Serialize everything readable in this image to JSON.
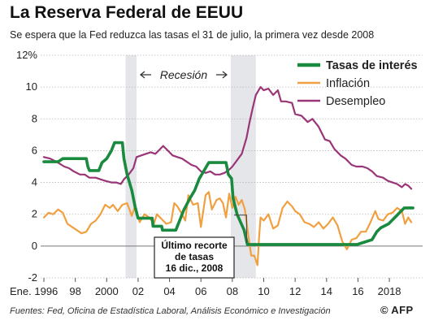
{
  "header": {
    "title": "La Reserva Federal de EEUU",
    "subtitle": "Se espera que la Fed reduzca las tasas el 31 de julio, la primera vez desde 2008"
  },
  "footer": {
    "source": "Fuentes: Fed, Oficina de Estadística Laboral, Análisis Económico e Investigación",
    "copyright": "©",
    "brand": "AFP"
  },
  "colors": {
    "fed_rate": "#1a8a3e",
    "inflation": "#f0a040",
    "unemployment": "#9a3577",
    "recession": "#e4e6ea"
  },
  "chart_data": {
    "type": "line",
    "title": "La Reserva Federal de EEUU",
    "subtitle": "Se espera que la Fed reduzca las tasas el 31 de julio, la primera vez desde 2008",
    "xlim": [
      1996,
      2019.6
    ],
    "ylim": [
      -2,
      12
    ],
    "x_ticks": [
      {
        "x": 1996,
        "label": "Ene. 1996"
      },
      {
        "x": 1998,
        "label": "98"
      },
      {
        "x": 2000,
        "label": "2000"
      },
      {
        "x": 2002,
        "label": "02"
      },
      {
        "x": 2004,
        "label": "04"
      },
      {
        "x": 2006,
        "label": "06"
      },
      {
        "x": 2008,
        "label": "08"
      },
      {
        "x": 2010,
        "label": "10"
      },
      {
        "x": 2012,
        "label": "12"
      },
      {
        "x": 2014,
        "label": "14"
      },
      {
        "x": 2016,
        "label": "16"
      },
      {
        "x": 2018,
        "label": "2018"
      }
    ],
    "y_ticks": [
      {
        "y": 12,
        "label": "12%"
      },
      {
        "y": 10,
        "label": "10"
      },
      {
        "y": 8,
        "label": "8"
      },
      {
        "y": 6,
        "label": "6"
      },
      {
        "y": 4,
        "label": "4"
      },
      {
        "y": 2,
        "label": "2"
      },
      {
        "y": 0,
        "label": "0"
      },
      {
        "y": -2,
        "label": "-2"
      }
    ],
    "recessions": [
      {
        "start": 2001.2,
        "end": 2001.9
      },
      {
        "start": 2007.9,
        "end": 2009.5
      }
    ],
    "recession_label": "Recesión",
    "annotation": {
      "text": [
        "Último recorte",
        "de tasas",
        "16 dic., 2008"
      ],
      "x": 2008.96,
      "y": 0.1
    },
    "legend": {
      "position": "top-right"
    },
    "series": [
      {
        "name": "Tasas de interés",
        "key": "fed_rate",
        "points": [
          [
            1996,
            5.3
          ],
          [
            1996.9,
            5.3
          ],
          [
            1997.2,
            5.5
          ],
          [
            1998.7,
            5.5
          ],
          [
            1998.8,
            5.0
          ],
          [
            1998.9,
            4.75
          ],
          [
            1999.5,
            4.75
          ],
          [
            1999.7,
            5.25
          ],
          [
            2000.0,
            5.5
          ],
          [
            2000.3,
            6.0
          ],
          [
            2000.5,
            6.5
          ],
          [
            2001.0,
            6.5
          ],
          [
            2001.1,
            5.5
          ],
          [
            2001.3,
            4.5
          ],
          [
            2001.6,
            3.5
          ],
          [
            2001.8,
            2.5
          ],
          [
            2002.0,
            1.75
          ],
          [
            2002.9,
            1.75
          ],
          [
            2002.95,
            1.25
          ],
          [
            2003.5,
            1.25
          ],
          [
            2003.55,
            1.0
          ],
          [
            2004.4,
            1.0
          ],
          [
            2004.6,
            1.5
          ],
          [
            2004.9,
            2.25
          ],
          [
            2005.3,
            3.0
          ],
          [
            2005.6,
            3.5
          ],
          [
            2005.9,
            4.25
          ],
          [
            2006.2,
            4.75
          ],
          [
            2006.5,
            5.25
          ],
          [
            2007.6,
            5.25
          ],
          [
            2007.75,
            4.5
          ],
          [
            2007.95,
            4.25
          ],
          [
            2008.05,
            3.0
          ],
          [
            2008.3,
            2.0
          ],
          [
            2008.75,
            1.0
          ],
          [
            2008.96,
            0.1
          ],
          [
            2015.95,
            0.1
          ],
          [
            2016.9,
            0.4
          ],
          [
            2017.2,
            0.9
          ],
          [
            2017.45,
            1.15
          ],
          [
            2017.95,
            1.4
          ],
          [
            2018.2,
            1.65
          ],
          [
            2018.45,
            1.9
          ],
          [
            2018.7,
            2.15
          ],
          [
            2018.95,
            2.4
          ],
          [
            2019.5,
            2.4
          ]
        ]
      },
      {
        "name": "Inflación",
        "key": "inflation",
        "points": [
          [
            1996,
            1.8
          ],
          [
            1996.3,
            2.1
          ],
          [
            1996.6,
            2.0
          ],
          [
            1996.9,
            2.3
          ],
          [
            1997.2,
            2.1
          ],
          [
            1997.5,
            1.4
          ],
          [
            1997.8,
            1.2
          ],
          [
            1998.1,
            1.0
          ],
          [
            1998.4,
            0.8
          ],
          [
            1998.7,
            0.9
          ],
          [
            1999.0,
            1.4
          ],
          [
            1999.3,
            1.6
          ],
          [
            1999.6,
            2.0
          ],
          [
            1999.9,
            2.6
          ],
          [
            2000.2,
            2.4
          ],
          [
            2000.4,
            2.6
          ],
          [
            2000.7,
            2.2
          ],
          [
            2001.0,
            2.6
          ],
          [
            2001.3,
            2.7
          ],
          [
            2001.6,
            1.9
          ],
          [
            2001.8,
            2.5
          ],
          [
            2002.1,
            1.5
          ],
          [
            2002.4,
            2.0
          ],
          [
            2002.7,
            1.8
          ],
          [
            2003.0,
            1.4
          ],
          [
            2003.2,
            2.0
          ],
          [
            2003.5,
            1.7
          ],
          [
            2003.8,
            1.4
          ],
          [
            2004.1,
            1.5
          ],
          [
            2004.3,
            2.7
          ],
          [
            2004.5,
            2.5
          ],
          [
            2004.8,
            2.0
          ],
          [
            2005.0,
            1.6
          ],
          [
            2005.2,
            3.2
          ],
          [
            2005.5,
            2.6
          ],
          [
            2005.8,
            2.7
          ],
          [
            2006.0,
            1.2
          ],
          [
            2006.3,
            3.2
          ],
          [
            2006.5,
            3.4
          ],
          [
            2006.7,
            2.3
          ],
          [
            2007.0,
            2.9
          ],
          [
            2007.2,
            3.0
          ],
          [
            2007.4,
            2.7
          ],
          [
            2007.6,
            1.8
          ],
          [
            2007.8,
            3.3
          ],
          [
            2008.0,
            2.4
          ],
          [
            2008.2,
            3.1
          ],
          [
            2008.4,
            2.6
          ],
          [
            2008.6,
            2.9
          ],
          [
            2008.8,
            2.3
          ],
          [
            2009.0,
            0.8
          ],
          [
            2009.2,
            -0.6
          ],
          [
            2009.4,
            -0.6
          ],
          [
            2009.6,
            -1.2
          ],
          [
            2009.7,
            0.5
          ],
          [
            2009.8,
            1.8
          ],
          [
            2010.0,
            1.6
          ],
          [
            2010.3,
            2.0
          ],
          [
            2010.6,
            1.1
          ],
          [
            2010.9,
            1.3
          ],
          [
            2011.2,
            2.4
          ],
          [
            2011.5,
            2.8
          ],
          [
            2011.8,
            2.5
          ],
          [
            2012.0,
            2.2
          ],
          [
            2012.3,
            2.0
          ],
          [
            2012.6,
            1.5
          ],
          [
            2012.9,
            1.4
          ],
          [
            2013.2,
            1.2
          ],
          [
            2013.5,
            1.5
          ],
          [
            2013.8,
            1.1
          ],
          [
            2014.1,
            1.4
          ],
          [
            2014.4,
            1.8
          ],
          [
            2014.7,
            1.3
          ],
          [
            2015.0,
            0.3
          ],
          [
            2015.3,
            -0.2
          ],
          [
            2015.6,
            0.4
          ],
          [
            2015.9,
            0.5
          ],
          [
            2016.2,
            0.9
          ],
          [
            2016.5,
            0.9
          ],
          [
            2016.8,
            1.5
          ],
          [
            2017.1,
            2.2
          ],
          [
            2017.3,
            1.7
          ],
          [
            2017.6,
            1.6
          ],
          [
            2017.9,
            2.0
          ],
          [
            2018.2,
            2.1
          ],
          [
            2018.5,
            2.4
          ],
          [
            2018.8,
            2.2
          ],
          [
            2019.0,
            1.4
          ],
          [
            2019.2,
            1.8
          ],
          [
            2019.4,
            1.5
          ]
        ]
      },
      {
        "name": "Desempleo",
        "key": "unemployment",
        "points": [
          [
            1996,
            5.6
          ],
          [
            1996.4,
            5.5
          ],
          [
            1996.8,
            5.3
          ],
          [
            1997.3,
            5.0
          ],
          [
            1997.6,
            4.9
          ],
          [
            1997.9,
            4.7
          ],
          [
            1998.3,
            4.5
          ],
          [
            1998.6,
            4.5
          ],
          [
            1998.9,
            4.3
          ],
          [
            1999.3,
            4.3
          ],
          [
            1999.6,
            4.2
          ],
          [
            1999.9,
            4.1
          ],
          [
            2000.3,
            4.0
          ],
          [
            2000.6,
            4.0
          ],
          [
            2000.9,
            3.9
          ],
          [
            2001.1,
            4.2
          ],
          [
            2001.4,
            4.5
          ],
          [
            2001.7,
            4.9
          ],
          [
            2001.9,
            5.6
          ],
          [
            2002.2,
            5.7
          ],
          [
            2002.5,
            5.8
          ],
          [
            2002.8,
            5.9
          ],
          [
            2003.1,
            5.8
          ],
          [
            2003.4,
            6.1
          ],
          [
            2003.6,
            6.3
          ],
          [
            2003.9,
            6.0
          ],
          [
            2004.2,
            5.7
          ],
          [
            2004.5,
            5.6
          ],
          [
            2004.8,
            5.5
          ],
          [
            2005.1,
            5.3
          ],
          [
            2005.4,
            5.1
          ],
          [
            2005.7,
            5.0
          ],
          [
            2006.0,
            4.7
          ],
          [
            2006.3,
            4.6
          ],
          [
            2006.6,
            4.7
          ],
          [
            2006.9,
            4.5
          ],
          [
            2007.2,
            4.5
          ],
          [
            2007.5,
            4.6
          ],
          [
            2007.8,
            4.8
          ],
          [
            2008.0,
            5.0
          ],
          [
            2008.3,
            5.4
          ],
          [
            2008.6,
            5.8
          ],
          [
            2008.9,
            6.8
          ],
          [
            2009.1,
            7.8
          ],
          [
            2009.3,
            8.7
          ],
          [
            2009.5,
            9.5
          ],
          [
            2009.8,
            10.0
          ],
          [
            2010.0,
            9.8
          ],
          [
            2010.3,
            9.9
          ],
          [
            2010.6,
            9.5
          ],
          [
            2010.9,
            9.8
          ],
          [
            2011.1,
            9.1
          ],
          [
            2011.4,
            9.1
          ],
          [
            2011.8,
            9.0
          ],
          [
            2012.0,
            8.3
          ],
          [
            2012.4,
            8.2
          ],
          [
            2012.8,
            7.8
          ],
          [
            2013.1,
            8.0
          ],
          [
            2013.5,
            7.5
          ],
          [
            2013.9,
            6.7
          ],
          [
            2014.2,
            6.6
          ],
          [
            2014.5,
            6.1
          ],
          [
            2014.9,
            5.7
          ],
          [
            2015.2,
            5.5
          ],
          [
            2015.6,
            5.1
          ],
          [
            2015.9,
            5.0
          ],
          [
            2016.3,
            5.0
          ],
          [
            2016.6,
            4.9
          ],
          [
            2016.9,
            4.7
          ],
          [
            2017.2,
            4.4
          ],
          [
            2017.6,
            4.3
          ],
          [
            2017.9,
            4.1
          ],
          [
            2018.2,
            4.0
          ],
          [
            2018.5,
            3.9
          ],
          [
            2018.8,
            3.7
          ],
          [
            2019.0,
            3.9
          ],
          [
            2019.2,
            3.8
          ],
          [
            2019.4,
            3.6
          ]
        ]
      }
    ]
  }
}
